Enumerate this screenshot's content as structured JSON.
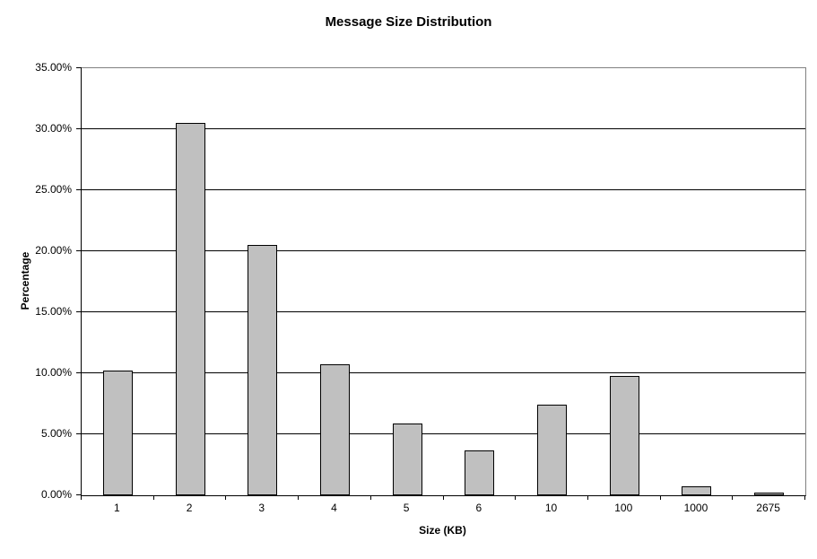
{
  "chart_data": {
    "type": "bar",
    "title": "Message Size Distribution",
    "xlabel": "Size (KB)",
    "ylabel": "Percentage",
    "categories": [
      "1",
      "2",
      "3",
      "4",
      "5",
      "6",
      "10",
      "100",
      "1000",
      "2675"
    ],
    "values": [
      10.2,
      30.5,
      20.5,
      10.7,
      5.9,
      3.7,
      7.4,
      9.8,
      0.7,
      0.2
    ],
    "ylim": [
      0,
      35
    ],
    "ytick_step": 5,
    "ytick_labels": [
      "0.00%",
      "5.00%",
      "10.00%",
      "15.00%",
      "20.00%",
      "25.00%",
      "30.00%",
      "35.00%"
    ],
    "grid": true,
    "legend_position": "none",
    "colors": {
      "bar_fill": "#c0c0c0",
      "bar_border": "#000000",
      "gridline": "#000000",
      "plot_border": "#808080",
      "axis": "#000000",
      "background": "#ffffff",
      "text": "#000000"
    }
  }
}
